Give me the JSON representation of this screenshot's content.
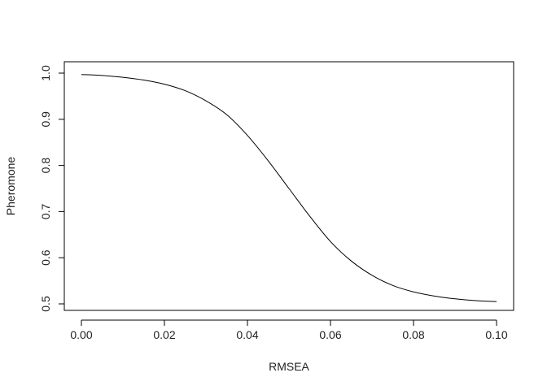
{
  "chart_data": {
    "type": "line",
    "title": "",
    "xlabel": "RMSEA",
    "ylabel": "Pheromone",
    "xlim": [
      0.0,
      0.1
    ],
    "ylim": [
      0.5,
      1.0
    ],
    "xticks": [
      0.0,
      0.02,
      0.04,
      0.06,
      0.08,
      0.1
    ],
    "xtick_labels": [
      "0.00",
      "0.02",
      "0.04",
      "0.06",
      "0.08",
      "0.10"
    ],
    "yticks": [
      0.5,
      0.6,
      0.7,
      0.8,
      0.9,
      1.0
    ],
    "ytick_labels": [
      "0.5",
      "0.6",
      "0.7",
      "0.8",
      "0.9",
      "1.0"
    ],
    "grid": false,
    "series": [
      {
        "x": [
          0.0,
          0.005,
          0.01,
          0.015,
          0.02,
          0.025,
          0.03,
          0.035,
          0.04,
          0.045,
          0.05,
          0.055,
          0.06,
          0.065,
          0.07,
          0.075,
          0.08,
          0.085,
          0.09,
          0.095,
          0.1
        ],
        "values": [
          0.997,
          0.995,
          0.991,
          0.985,
          0.976,
          0.962,
          0.94,
          0.91,
          0.865,
          0.81,
          0.75,
          0.69,
          0.635,
          0.593,
          0.562,
          0.54,
          0.526,
          0.517,
          0.511,
          0.507,
          0.505
        ],
        "color": "#000000"
      }
    ]
  }
}
